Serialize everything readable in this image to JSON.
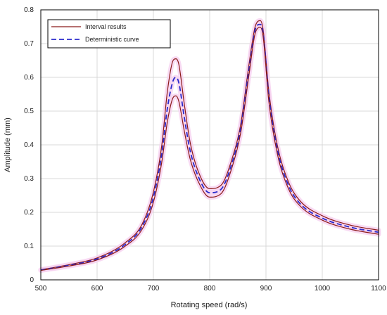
{
  "chart_data": {
    "type": "line",
    "title": "",
    "xlabel": "Rotating speed (rad/s)",
    "ylabel": "Amplitude (mm)",
    "xlim": [
      500,
      1100
    ],
    "ylim": [
      0,
      0.8
    ],
    "xticks": [
      500,
      600,
      700,
      800,
      900,
      1000,
      1100
    ],
    "yticks": [
      0,
      0.1,
      0.2,
      0.3,
      0.4,
      0.5,
      0.6,
      0.7,
      0.8
    ],
    "grid": true,
    "legend_position": "top-left",
    "legend": [
      {
        "name": "Interval results",
        "style": "solid",
        "color": "#8b1a1a"
      },
      {
        "name": "Deterministic curve",
        "style": "dashed",
        "color": "#2a2acc"
      }
    ],
    "x": [
      500,
      550,
      600,
      650,
      680,
      700,
      715,
      725,
      735,
      740,
      745,
      755,
      765,
      780,
      800,
      820,
      840,
      855,
      870,
      880,
      885,
      890,
      895,
      905,
      920,
      940,
      960,
      1000,
      1050,
      1100
    ],
    "series": [
      {
        "name": "Interval results",
        "role": "upper",
        "color": "#8b1a1a",
        "style": "solid",
        "values": [
          0.03,
          0.045,
          0.065,
          0.11,
          0.165,
          0.26,
          0.4,
          0.56,
          0.65,
          0.655,
          0.64,
          0.52,
          0.41,
          0.32,
          0.27,
          0.28,
          0.36,
          0.46,
          0.64,
          0.745,
          0.765,
          0.768,
          0.74,
          0.56,
          0.4,
          0.29,
          0.235,
          0.19,
          0.162,
          0.147
        ]
      },
      {
        "name": "Deterministic curve",
        "color": "#2a2acc",
        "style": "dashed",
        "values": [
          0.029,
          0.043,
          0.062,
          0.105,
          0.158,
          0.245,
          0.375,
          0.51,
          0.59,
          0.6,
          0.585,
          0.48,
          0.385,
          0.305,
          0.258,
          0.268,
          0.348,
          0.448,
          0.625,
          0.735,
          0.755,
          0.757,
          0.73,
          0.545,
          0.388,
          0.28,
          0.227,
          0.183,
          0.156,
          0.141
        ]
      },
      {
        "name": "Interval results",
        "role": "lower",
        "color": "#8b1a1a",
        "style": "solid",
        "values": [
          0.028,
          0.041,
          0.059,
          0.1,
          0.15,
          0.23,
          0.35,
          0.47,
          0.54,
          0.545,
          0.53,
          0.44,
          0.36,
          0.29,
          0.245,
          0.255,
          0.335,
          0.435,
          0.61,
          0.725,
          0.745,
          0.748,
          0.72,
          0.53,
          0.375,
          0.27,
          0.22,
          0.177,
          0.15,
          0.135
        ]
      }
    ]
  }
}
